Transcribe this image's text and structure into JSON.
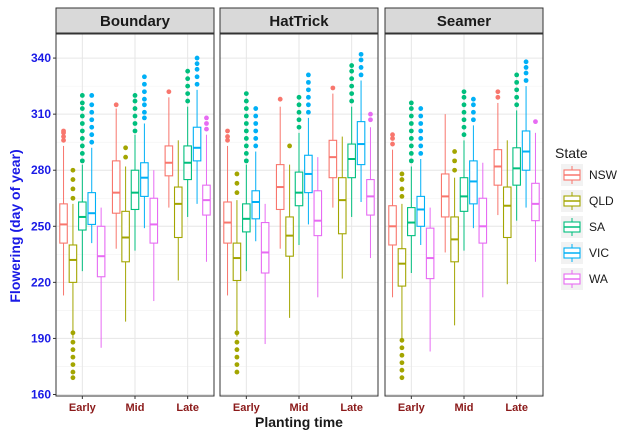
{
  "chart_data": {
    "type": "boxplot",
    "facets": [
      {
        "name": "Boundary",
        "groups": [
          {
            "time": "Early",
            "boxes": [
              {
                "state": "NSW",
                "q1": 241,
                "median": 251,
                "q3": 262,
                "min": 213,
                "max": 293,
                "outliers": [
                  296,
                  298,
                  300,
                  301
                ]
              },
              {
                "state": "QLD",
                "q1": 220,
                "median": 232,
                "q3": 240,
                "min": 190,
                "max": 262,
                "outliers": [
                  265,
                  270,
                  275,
                  280,
                  193,
                  188,
                  184,
                  180,
                  176,
                  172,
                  169
                ]
              },
              {
                "state": "SA",
                "q1": 248,
                "median": 255,
                "q3": 263,
                "min": 226,
                "max": 283,
                "outliers": [
                  285,
                  289,
                  293,
                  297,
                  301,
                  305,
                  309,
                  313,
                  316,
                  320
                ]
              },
              {
                "state": "VIC",
                "q1": 251,
                "median": 257,
                "q3": 268,
                "min": 241,
                "max": 292,
                "outliers": [
                  295,
                  299,
                  303,
                  307,
                  311,
                  315,
                  320
                ]
              },
              {
                "state": "WA",
                "q1": 223,
                "median": 234,
                "q3": 250,
                "min": 185,
                "max": 260,
                "outliers": []
              }
            ]
          },
          {
            "time": "Mid",
            "boxes": [
              {
                "state": "NSW",
                "q1": 257,
                "median": 268,
                "q3": 285,
                "min": 238,
                "max": 313,
                "outliers": [
                  315
                ]
              },
              {
                "state": "QLD",
                "q1": 231,
                "median": 244,
                "q3": 258,
                "min": 199,
                "max": 282,
                "outliers": [
                  287,
                  292
                ]
              },
              {
                "state": "SA",
                "q1": 259,
                "median": 268,
                "q3": 280,
                "min": 237,
                "max": 299,
                "outliers": [
                  301,
                  305,
                  309,
                  313,
                  317,
                  320
                ]
              },
              {
                "state": "VIC",
                "q1": 266,
                "median": 276,
                "q3": 284,
                "min": 249,
                "max": 305,
                "outliers": [
                  308,
                  311,
                  315,
                  318,
                  322,
                  326,
                  330
                ]
              },
              {
                "state": "WA",
                "q1": 241,
                "median": 251,
                "q3": 265,
                "min": 210,
                "max": 280,
                "outliers": []
              }
            ]
          },
          {
            "time": "Late",
            "boxes": [
              {
                "state": "NSW",
                "q1": 277,
                "median": 284,
                "q3": 293,
                "min": 260,
                "max": 319,
                "outliers": [
                  322
                ]
              },
              {
                "state": "QLD",
                "q1": 244,
                "median": 262,
                "q3": 271,
                "min": 221,
                "max": 296,
                "outliers": []
              },
              {
                "state": "SA",
                "q1": 275,
                "median": 284,
                "q3": 293,
                "min": 255,
                "max": 314,
                "outliers": [
                  317,
                  321,
                  325,
                  329,
                  333
                ]
              },
              {
                "state": "VIC",
                "q1": 285,
                "median": 292,
                "q3": 303,
                "min": 262,
                "max": 323,
                "outliers": [
                  326,
                  330,
                  334,
                  337,
                  340
                ]
              },
              {
                "state": "WA",
                "q1": 256,
                "median": 264,
                "q3": 272,
                "min": 231,
                "max": 299,
                "outliers": [
                  302,
                  305,
                  308
                ]
              }
            ]
          }
        ]
      },
      {
        "name": "HatTrick",
        "groups": [
          {
            "time": "Early",
            "boxes": [
              {
                "state": "NSW",
                "q1": 241,
                "median": 252,
                "q3": 263,
                "min": 213,
                "max": 293,
                "outliers": [
                  296,
                  298,
                  301
                ]
              },
              {
                "state": "QLD",
                "q1": 221,
                "median": 233,
                "q3": 241,
                "min": 191,
                "max": 264,
                "outliers": [
                  268,
                  273,
                  278,
                  193,
                  188,
                  184,
                  180,
                  176,
                  172
                ]
              },
              {
                "state": "SA",
                "q1": 247,
                "median": 254,
                "q3": 262,
                "min": 226,
                "max": 283,
                "outliers": [
                  285,
                  289,
                  293,
                  297,
                  301,
                  305,
                  309,
                  313,
                  317,
                  321
                ]
              },
              {
                "state": "VIC",
                "q1": 254,
                "median": 263,
                "q3": 269,
                "min": 242,
                "max": 290,
                "outliers": [
                  293,
                  297,
                  301,
                  305,
                  309,
                  313
                ]
              },
              {
                "state": "WA",
                "q1": 225,
                "median": 236,
                "q3": 252,
                "min": 187,
                "max": 262,
                "outliers": []
              }
            ]
          },
          {
            "time": "Mid",
            "boxes": [
              {
                "state": "NSW",
                "q1": 259,
                "median": 271,
                "q3": 283,
                "min": 238,
                "max": 314,
                "outliers": [
                  318
                ]
              },
              {
                "state": "QLD",
                "q1": 234,
                "median": 245,
                "q3": 255,
                "min": 201,
                "max": 283,
                "outliers": [
                  293
                ]
              },
              {
                "state": "SA",
                "q1": 261,
                "median": 268,
                "q3": 279,
                "min": 240,
                "max": 300,
                "outliers": [
                  303,
                  307,
                  311,
                  315,
                  319
                ]
              },
              {
                "state": "VIC",
                "q1": 268,
                "median": 278,
                "q3": 288,
                "min": 251,
                "max": 308,
                "outliers": [
                  311,
                  315,
                  319,
                  323,
                  327,
                  331
                ]
              },
              {
                "state": "WA",
                "q1": 245,
                "median": 253,
                "q3": 269,
                "min": 212,
                "max": 287,
                "outliers": []
              }
            ]
          },
          {
            "time": "Late",
            "boxes": [
              {
                "state": "NSW",
                "q1": 276,
                "median": 287,
                "q3": 296,
                "min": 260,
                "max": 321,
                "outliers": [
                  324
                ]
              },
              {
                "state": "QLD",
                "q1": 246,
                "median": 264,
                "q3": 276,
                "min": 222,
                "max": 298,
                "outliers": []
              },
              {
                "state": "SA",
                "q1": 276,
                "median": 286,
                "q3": 294,
                "min": 255,
                "max": 314,
                "outliers": [
                  317,
                  321,
                  325,
                  329,
                  333,
                  336
                ]
              },
              {
                "state": "VIC",
                "q1": 283,
                "median": 294,
                "q3": 306,
                "min": 263,
                "max": 328,
                "outliers": [
                  331,
                  335,
                  339,
                  342
                ]
              },
              {
                "state": "WA",
                "q1": 256,
                "median": 266,
                "q3": 275,
                "min": 233,
                "max": 303,
                "outliers": [
                  307,
                  310
                ]
              }
            ]
          }
        ]
      },
      {
        "name": "Seamer",
        "groups": [
          {
            "time": "Early",
            "boxes": [
              {
                "state": "NSW",
                "q1": 240,
                "median": 250,
                "q3": 261,
                "min": 212,
                "max": 291,
                "outliers": [
                  294,
                  297,
                  299
                ]
              },
              {
                "state": "QLD",
                "q1": 218,
                "median": 230,
                "q3": 238,
                "min": 190,
                "max": 262,
                "outliers": [
                  266,
                  270,
                  275,
                  278,
                  189,
                  185,
                  181,
                  177,
                  173,
                  169
                ]
              },
              {
                "state": "SA",
                "q1": 245,
                "median": 252,
                "q3": 260,
                "min": 225,
                "max": 282,
                "outliers": [
                  285,
                  289,
                  293,
                  297,
                  301,
                  305,
                  309,
                  313,
                  316
                ]
              },
              {
                "state": "VIC",
                "q1": 250,
                "median": 259,
                "q3": 266,
                "min": 240,
                "max": 286,
                "outliers": [
                  289,
                  293,
                  297,
                  301,
                  305,
                  309,
                  313
                ]
              },
              {
                "state": "WA",
                "q1": 222,
                "median": 233,
                "q3": 249,
                "min": 183,
                "max": 260,
                "outliers": []
              }
            ]
          },
          {
            "time": "Mid",
            "boxes": [
              {
                "state": "NSW",
                "q1": 255,
                "median": 266,
                "q3": 278,
                "min": 236,
                "max": 310,
                "outliers": []
              },
              {
                "state": "QLD",
                "q1": 231,
                "median": 243,
                "q3": 255,
                "min": 197,
                "max": 276,
                "outliers": [
                  280,
                  285,
                  290
                ]
              },
              {
                "state": "SA",
                "q1": 258,
                "median": 266,
                "q3": 276,
                "min": 237,
                "max": 296,
                "outliers": [
                  299,
                  303,
                  307,
                  311,
                  315,
                  319,
                  322
                ]
              },
              {
                "state": "VIC",
                "q1": 262,
                "median": 274,
                "q3": 285,
                "min": 249,
                "max": 304,
                "outliers": [
                  307,
                  311,
                  315,
                  318
                ]
              },
              {
                "state": "WA",
                "q1": 241,
                "median": 250,
                "q3": 265,
                "min": 212,
                "max": 284,
                "outliers": []
              }
            ]
          },
          {
            "time": "Late",
            "boxes": [
              {
                "state": "NSW",
                "q1": 272,
                "median": 282,
                "q3": 291,
                "min": 256,
                "max": 316,
                "outliers": [
                  319,
                  322
                ]
              },
              {
                "state": "QLD",
                "q1": 244,
                "median": 261,
                "q3": 271,
                "min": 219,
                "max": 296,
                "outliers": []
              },
              {
                "state": "SA",
                "q1": 272,
                "median": 281,
                "q3": 292,
                "min": 253,
                "max": 312,
                "outliers": [
                  315,
                  319,
                  323,
                  327,
                  331
                ]
              },
              {
                "state": "VIC",
                "q1": 280,
                "median": 290,
                "q3": 301,
                "min": 260,
                "max": 325,
                "outliers": [
                  328,
                  332,
                  335,
                  338
                ]
              },
              {
                "state": "WA",
                "q1": 253,
                "median": 262,
                "q3": 273,
                "min": 231,
                "max": 300,
                "outliers": [
                  306
                ]
              }
            ]
          }
        ]
      }
    ],
    "categories": [
      "Early",
      "Mid",
      "Late"
    ],
    "xlabel": "Planting time",
    "ylabel": "Flowering (day of year)",
    "ylim": [
      160,
      348
    ],
    "yticks": [
      160,
      190,
      220,
      250,
      280,
      310,
      340
    ],
    "grid": true,
    "legend": {
      "title": "State",
      "position": "right",
      "entries": [
        {
          "label": "NSW",
          "color": "#F8766D"
        },
        {
          "label": "QLD",
          "color": "#A3A500"
        },
        {
          "label": "SA",
          "color": "#00BF7D"
        },
        {
          "label": "VIC",
          "color": "#00B0F6"
        },
        {
          "label": "WA",
          "color": "#E76BF3"
        }
      ]
    },
    "colors": {
      "ytick": "#1a1ae6",
      "ylabel": "#1a1ae6",
      "xtick": "#8b1a1a",
      "strip_fill": "#d9d9d9"
    }
  }
}
